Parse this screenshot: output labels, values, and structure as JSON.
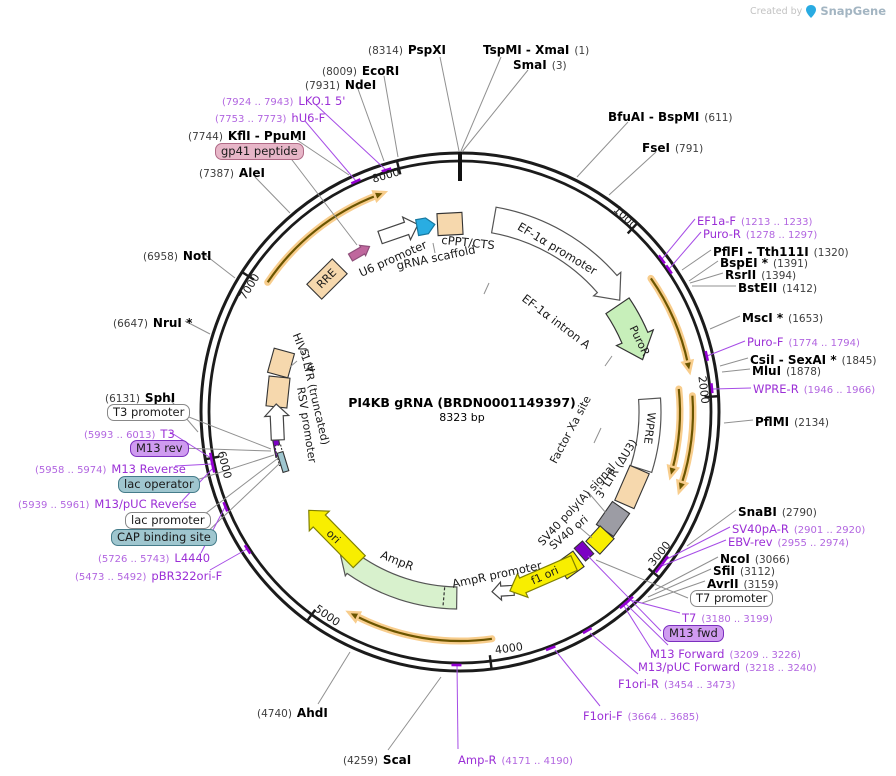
{
  "watermark": {
    "created_by": "Created by",
    "brand": "SnapGene"
  },
  "plasmid": {
    "title": "PI4KB gRNA (BRDN0001149397)",
    "size": "8323 bp"
  },
  "ring_ticks": {
    "1000": {
      "label": "1000"
    },
    "2000": {
      "label": "2000"
    },
    "3000": {
      "label": "3000"
    },
    "4000": {
      "label": "4000"
    },
    "5000": {
      "label": "5000"
    },
    "6000": {
      "label": "6000"
    },
    "7000": {
      "label": "7000"
    },
    "8000": {
      "label": "8000"
    }
  },
  "map_texts": {
    "rre": {
      "text": "RRE"
    },
    "u6": {
      "text": "U6 promoter"
    },
    "grna": {
      "text": "gRNA scaffold"
    },
    "cppt": {
      "text": "cPPT/CTS"
    },
    "ef1aprom": {
      "text": "EF-1α promoter"
    },
    "intron": {
      "text": "EF-1α intron A"
    },
    "puror": {
      "text": "PuroR"
    },
    "wpre": {
      "text": "WPRE"
    },
    "factorxa": {
      "text": "Factor Xa site"
    },
    "ltr3": {
      "text": "3' LTR (ΔU3)"
    },
    "sv40pa": {
      "text": "SV40 poly(A) signal"
    },
    "sv40ori": {
      "text": "SV40 ori"
    },
    "f1ori": {
      "text": "f1 ori"
    },
    "amprprom": {
      "text": "AmpR promoter"
    },
    "ampr": {
      "text": "AmpR"
    },
    "ori": {
      "text": "ori"
    },
    "rsvprom": {
      "text": "RSV promoter"
    },
    "ltr5": {
      "text": "5' LTR (truncated)"
    },
    "hiv1psi": {
      "text": "HIV-1 Ψ"
    }
  },
  "labels": {
    "pspxi": {
      "kind": "enzyme",
      "pre": "(8314)",
      "name": "PspXI"
    },
    "tspmi": {
      "kind": "enzyme",
      "name": "TspMI - XmaI",
      "post": "(1)"
    },
    "smai": {
      "kind": "enzyme",
      "name": "SmaI",
      "post": "(3)"
    },
    "ecori": {
      "kind": "enzyme",
      "pre": "(8009)",
      "name": "EcoRI"
    },
    "ndei": {
      "kind": "enzyme",
      "pre": "(7931)",
      "name": "NdeI"
    },
    "lko": {
      "kind": "primer",
      "pre": "(7924 .. 7943)",
      "name": "LKO.1 5'"
    },
    "hu6f": {
      "kind": "primer",
      "pre": "(7753 .. 7773)",
      "name": "hU6-F"
    },
    "kfli": {
      "kind": "enzyme",
      "pre": "(7744)",
      "name": "KflI - PpuMI"
    },
    "gp41box": {
      "kind": "box-pink",
      "name": "gp41 peptide"
    },
    "alei": {
      "kind": "enzyme",
      "pre": "(7387)",
      "name": "AleI"
    },
    "noti": {
      "kind": "enzyme",
      "pre": "(6958)",
      "name": "NotI"
    },
    "nrui": {
      "kind": "enzyme",
      "pre": "(6647)",
      "name": "NruI *"
    },
    "sphi": {
      "kind": "enzyme",
      "pre": "(6131)",
      "name": "SphI"
    },
    "t3prombox": {
      "kind": "box-white",
      "name": "T3 promoter"
    },
    "t3": {
      "kind": "primer",
      "pre": "(5993 .. 6013)",
      "name": "T3"
    },
    "m13revbox": {
      "kind": "box-purple",
      "name": "M13 rev"
    },
    "m13reverse": {
      "kind": "primer",
      "pre": "(5958 .. 5974)",
      "name": "M13 Reverse"
    },
    "lacopbox": {
      "kind": "box-teal",
      "name": "lac operator"
    },
    "m13pucrev": {
      "kind": "primer",
      "pre": "(5939 .. 5961)",
      "name": "M13/pUC Reverse"
    },
    "lacprombox": {
      "kind": "box-white",
      "name": "lac promoter"
    },
    "capbox": {
      "kind": "box-teal",
      "name": "CAP binding site"
    },
    "l4440": {
      "kind": "primer",
      "pre": "(5726 .. 5743)",
      "name": "L4440"
    },
    "pbr": {
      "kind": "primer",
      "pre": "(5473 .. 5492)",
      "name": "pBR322ori-F"
    },
    "ahdi": {
      "kind": "enzyme",
      "pre": "(4740)",
      "name": "AhdI"
    },
    "scai": {
      "kind": "enzyme",
      "pre": "(4259)",
      "name": "ScaI"
    },
    "amprp": {
      "kind": "primer",
      "name": "Amp-R",
      "post": "(4171 .. 4190)"
    },
    "f1orif": {
      "kind": "primer",
      "name": "F1ori-F",
      "post": "(3664 .. 3685)"
    },
    "f1orir": {
      "kind": "primer",
      "name": "F1ori-R",
      "post": "(3454 .. 3473)"
    },
    "m13pucfwd": {
      "kind": "primer",
      "name": "M13/pUC Forward",
      "post": "(3218 .. 3240)"
    },
    "m13forward": {
      "kind": "primer",
      "name": "M13 Forward",
      "post": "(3209 .. 3226)"
    },
    "m13fwdbox": {
      "kind": "box-purple",
      "name": "M13 fwd"
    },
    "t7": {
      "kind": "primer",
      "name": "T7",
      "post": "(3180 .. 3199)"
    },
    "t7prombox": {
      "kind": "box-white",
      "name": "T7 promoter"
    },
    "avrii": {
      "kind": "enzyme",
      "name": "AvrII",
      "post": "(3159)"
    },
    "sfii": {
      "kind": "enzyme",
      "name": "SfiI",
      "post": "(3112)"
    },
    "ncoi": {
      "kind": "enzyme",
      "name": "NcoI",
      "post": "(3066)"
    },
    "ebvrev": {
      "kind": "primer",
      "name": "EBV-rev",
      "post": "(2955 .. 2974)"
    },
    "sv40par": {
      "kind": "primer",
      "name": "SV40pA-R",
      "post": "(2901 .. 2920)"
    },
    "snabi": {
      "kind": "enzyme",
      "name": "SnaBI",
      "post": "(2790)"
    },
    "pflmi": {
      "kind": "enzyme",
      "name": "PflMI",
      "post": "(2134)"
    },
    "wprer": {
      "kind": "primer",
      "name": "WPRE-R",
      "post": "(1946 .. 1966)"
    },
    "mlui": {
      "kind": "enzyme",
      "name": "MluI",
      "post": "(1878)"
    },
    "csii": {
      "kind": "enzyme",
      "name": "CsiI - SexAI *",
      "post": "(1845)"
    },
    "purof": {
      "kind": "primer",
      "name": "Puro-F",
      "post": "(1774 .. 1794)"
    },
    "msci": {
      "kind": "enzyme",
      "name": "MscI *",
      "post": "(1653)"
    },
    "bsteii": {
      "kind": "enzyme",
      "name": "BstEII",
      "post": "(1412)"
    },
    "rsrii": {
      "kind": "enzyme",
      "name": "RsrII",
      "post": "(1394)"
    },
    "bspei": {
      "kind": "enzyme",
      "name": "BspEI *",
      "post": "(1391)"
    },
    "pflfi": {
      "kind": "enzyme",
      "name": "PflFI - Tth111I",
      "post": "(1320)"
    },
    "purorp": {
      "kind": "primer",
      "name": "Puro-R",
      "post": "(1278 .. 1297)"
    },
    "ef1af": {
      "kind": "primer",
      "name": "EF1a-F",
      "post": "(1213 .. 1233)"
    },
    "fsei": {
      "kind": "enzyme",
      "name": "FseI",
      "post": "(791)"
    },
    "bfuai": {
      "kind": "enzyme",
      "name": "BfuAI - BspMI",
      "post": "(611)"
    }
  },
  "colors": {
    "ring": "#1b1b1b",
    "tan": "#f6d8ad",
    "yellow": "#f8ee00",
    "green_light": "#c7efba",
    "green_pale": "#d8f1cd",
    "gray_box": "#9c9ca4",
    "blue_arrow": "#29ade2",
    "pink_arrow": "#bf679d",
    "teal_box": "#9fc6cf",
    "purple_box": "#7c00c4",
    "primer_purple": "#9400d3",
    "leader_gray": "#909090",
    "leader_purple": "#a64ce6",
    "orange_glow": "#f8cd8c",
    "orange_core": "#6b5500",
    "green_glow": "#b7e069",
    "green_core": "#4e7a12"
  }
}
